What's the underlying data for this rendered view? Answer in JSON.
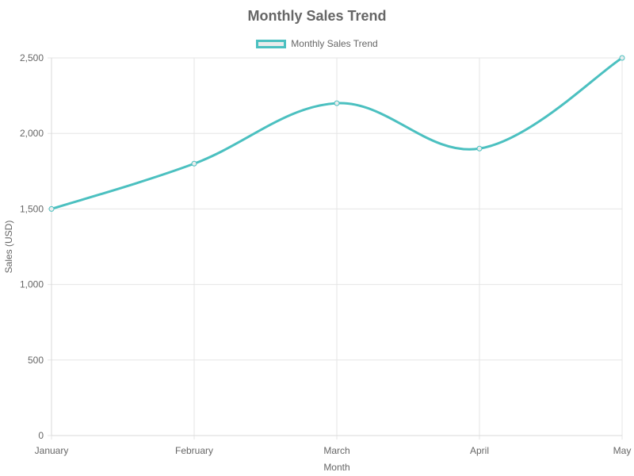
{
  "chart_data": {
    "type": "line",
    "title": "Monthly Sales Trend",
    "xlabel": "Month",
    "ylabel": "Sales (USD)",
    "categories": [
      "January",
      "February",
      "March",
      "April",
      "May"
    ],
    "series": [
      {
        "name": "Monthly Sales Trend",
        "values": [
          1500,
          1800,
          2200,
          1900,
          2500
        ],
        "color": "#4bc0c0",
        "fill": "#e9ecec"
      }
    ],
    "ylim": [
      0,
      2500
    ],
    "yticks": [
      0,
      500,
      1000,
      1500,
      2000,
      2500
    ],
    "ytick_labels": [
      "0",
      "500",
      "1,000",
      "1,500",
      "2,000",
      "2,500"
    ],
    "grid": true,
    "legend_position": "top-center",
    "gridline_color": "#e5e5e5"
  }
}
